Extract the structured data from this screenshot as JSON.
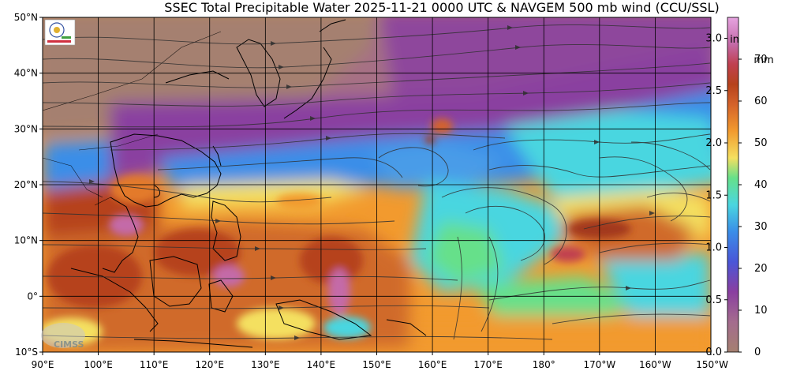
{
  "title": "SSEC Total Precipitable Water  2025-11-21 0000 UTC & NAVGEM 500 mb wind (CCU/SSL)",
  "lat_labels": [
    "50°N",
    "40°N",
    "30°N",
    "20°N",
    "10°N",
    "0°",
    "10°S"
  ],
  "lon_labels": [
    "90°E",
    "100°E",
    "110°E",
    "120°E",
    "130°E",
    "140°E",
    "150°E",
    "160°E",
    "170°E",
    "180°",
    "170°W",
    "160°W",
    "150°W"
  ],
  "colorbar": {
    "in_unit": "in",
    "mm_unit": "mm",
    "in_ticks": [
      "3.0",
      "2.5",
      "2.0",
      "1.5",
      "1.0",
      "0.5",
      "0.0"
    ],
    "mm_ticks": [
      "70",
      "60",
      "50",
      "40",
      "30",
      "20",
      "10",
      "0"
    ],
    "in_range": [
      0,
      3.2
    ],
    "mm_range": [
      0,
      80
    ]
  },
  "logos": {
    "cimss": "CIMSS"
  },
  "colors": {
    "dry": "#a58070",
    "purple": "#8a3fa0",
    "blue": "#3a8ee8",
    "cyan": "#4ad6e0",
    "green": "#66e08a",
    "yellow": "#f4e060",
    "orange": "#f29a2e",
    "brown": "#b6421c",
    "pink": "#d98ad6"
  }
}
